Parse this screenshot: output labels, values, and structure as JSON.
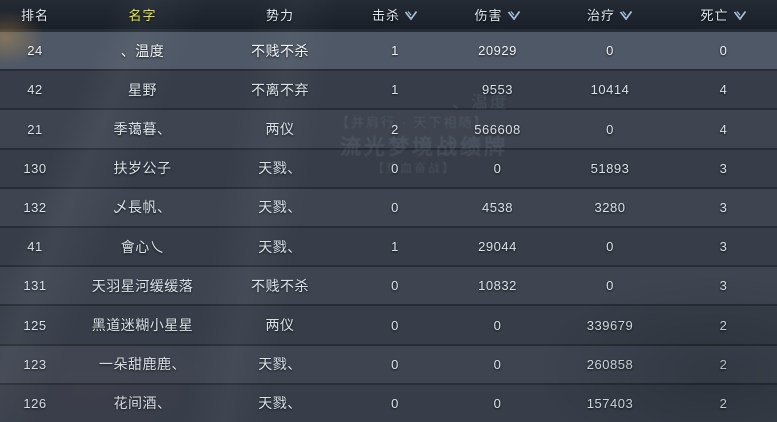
{
  "table": {
    "columns": [
      {
        "key": "rank",
        "label": "排名",
        "sortable": false,
        "accent": false
      },
      {
        "key": "name",
        "label": "名字",
        "sortable": false,
        "accent": true
      },
      {
        "key": "faction",
        "label": "势力",
        "sortable": false,
        "accent": false
      },
      {
        "key": "kills",
        "label": "击杀",
        "sortable": true,
        "accent": false
      },
      {
        "key": "damage",
        "label": "伤害",
        "sortable": true,
        "accent": false
      },
      {
        "key": "healing",
        "label": "治疗",
        "sortable": true,
        "accent": false
      },
      {
        "key": "deaths",
        "label": "死亡",
        "sortable": true,
        "accent": false
      }
    ],
    "rows": [
      {
        "rank": "24",
        "name": "、温度",
        "faction": "不贱不杀",
        "kills": "1",
        "damage": "20929",
        "healing": "0",
        "deaths": "0"
      },
      {
        "rank": "42",
        "name": "星野",
        "faction": "不离不弃",
        "kills": "1",
        "damage": "9553",
        "healing": "10414",
        "deaths": "4"
      },
      {
        "rank": "21",
        "name": "季蔼暮、",
        "faction": "两仪",
        "kills": "2",
        "damage": "566608",
        "healing": "0",
        "deaths": "4"
      },
      {
        "rank": "130",
        "name": "扶岁公子",
        "faction": "天戮、",
        "kills": "0",
        "damage": "0",
        "healing": "51893",
        "deaths": "3"
      },
      {
        "rank": "132",
        "name": "乄長帆、",
        "faction": "天戮、",
        "kills": "0",
        "damage": "4538",
        "healing": "3280",
        "deaths": "3"
      },
      {
        "rank": "41",
        "name": "會心乀",
        "faction": "天戮、",
        "kills": "1",
        "damage": "29044",
        "healing": "0",
        "deaths": "3"
      },
      {
        "rank": "131",
        "name": "天羽星河缓缓落",
        "faction": "不贱不杀",
        "kills": "0",
        "damage": "10832",
        "healing": "0",
        "deaths": "3"
      },
      {
        "rank": "125",
        "name": "黑道迷糊小星星",
        "faction": "两仪",
        "kills": "0",
        "damage": "0",
        "healing": "339679",
        "deaths": "2"
      },
      {
        "rank": "123",
        "name": "一朵甜鹿鹿、",
        "faction": "天戮、",
        "kills": "0",
        "damage": "0",
        "healing": "260858",
        "deaths": "2"
      },
      {
        "rank": "126",
        "name": "花间酒、",
        "faction": "天戮、",
        "kills": "0",
        "damage": "0",
        "healing": "157403",
        "deaths": "2"
      }
    ]
  },
  "watermark": {
    "lines": [
      "、温度",
      "【并肩行 · 天下相随】",
      "流光梦境战绩牌",
      "【热血奋战】"
    ]
  },
  "colors": {
    "accent_yellow": "#e9ed43",
    "header_bg": "#1d232c",
    "row_highlight": "#4f5866",
    "row_dark": "#373e49",
    "row_light": "#3e4551",
    "text": "#d9e1e9",
    "sort_icon": "#a9c2d8",
    "separator": "#262c35"
  },
  "icons": {
    "sort": "sort-chevron-icon"
  }
}
